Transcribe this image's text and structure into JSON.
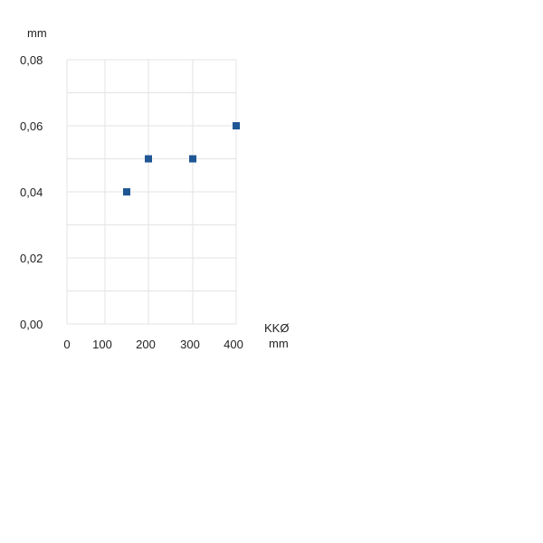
{
  "chart_data": {
    "type": "scatter",
    "title": "",
    "ylabel": "mm",
    "xlabel": [
      "KKØ",
      "mm"
    ],
    "ylim": [
      0,
      0.08
    ],
    "xlim": [
      0,
      400
    ],
    "x_ticks": [
      0,
      100,
      200,
      300,
      400
    ],
    "x_tick_labels": [
      "0",
      "100",
      "200",
      "300",
      "400"
    ],
    "y_ticks": [
      0,
      0.02,
      0.04,
      0.06,
      0.08
    ],
    "y_tick_labels": [
      "0,00",
      "0,02",
      "0,04",
      "0,06",
      "0,08"
    ],
    "y_minor_gridlines": [
      0.01,
      0.03,
      0.05,
      0.07
    ],
    "grid": true,
    "legend": "none",
    "marker": "square",
    "series": [
      {
        "x": [
          150,
          200,
          300,
          400
        ],
        "y": [
          0.04,
          0.05,
          0.05,
          0.06
        ],
        "color": "#1f5694"
      }
    ],
    "gridline_color": "#e3e3e3"
  }
}
